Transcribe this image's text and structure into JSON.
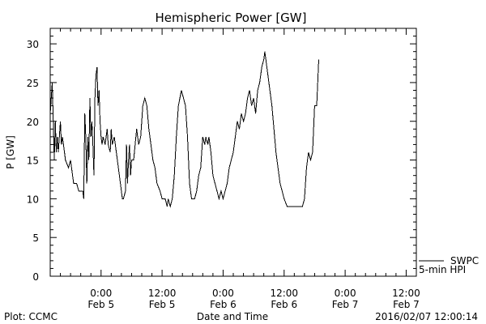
{
  "chart_data": {
    "type": "line",
    "title": "Hemispheric Power [GW]",
    "xlabel": "Date and Time",
    "ylabel": "P [GW]",
    "ylim": [
      0,
      32
    ],
    "xlim": [
      -5,
      31
    ],
    "x_unit_note": "hours from 2016-02-05 00:00 UT",
    "yticks": [
      0,
      5,
      10,
      15,
      20,
      25,
      30
    ],
    "xticks": [
      {
        "x": 0,
        "time": "0:00",
        "date": "Feb 5"
      },
      {
        "x": 6,
        "time": "12:00",
        "date": "Feb 5"
      },
      {
        "x": 12,
        "time": "0:00",
        "date": "Feb 6"
      },
      {
        "x": 18,
        "time": "12:00",
        "date": "Feb 6"
      },
      {
        "x": 24,
        "time": "0:00",
        "date": "Feb 7"
      },
      {
        "x": 30,
        "time": "12:00",
        "date": "Feb 7"
      }
    ],
    "grid": false,
    "legend_position": "bottom-right",
    "series": [
      {
        "name": "SWPC 5-min HPI",
        "color": "#000000",
        "points": [
          [
            -5.0,
            21
          ],
          [
            -4.9,
            23
          ],
          [
            -4.8,
            25
          ],
          [
            -4.7,
            20
          ],
          [
            -4.6,
            15
          ],
          [
            -4.5,
            20
          ],
          [
            -4.4,
            16
          ],
          [
            -4.3,
            18
          ],
          [
            -4.2,
            16
          ],
          [
            -4.1,
            18
          ],
          [
            -4.0,
            20
          ],
          [
            -3.9,
            17
          ],
          [
            -3.8,
            18
          ],
          [
            -3.6,
            16
          ],
          [
            -3.5,
            15
          ],
          [
            -3.2,
            14
          ],
          [
            -3.0,
            15
          ],
          [
            -2.8,
            13
          ],
          [
            -2.7,
            12
          ],
          [
            -2.4,
            12
          ],
          [
            -2.2,
            11
          ],
          [
            -1.8,
            11
          ],
          [
            -1.7,
            10
          ],
          [
            -1.6,
            21
          ],
          [
            -1.5,
            18
          ],
          [
            -1.4,
            12
          ],
          [
            -1.3,
            18
          ],
          [
            -1.2,
            15
          ],
          [
            -1.1,
            23
          ],
          [
            -1.0,
            18
          ],
          [
            -0.9,
            20
          ],
          [
            -0.8,
            17
          ],
          [
            -0.7,
            13
          ],
          [
            -0.6,
            23
          ],
          [
            -0.5,
            26
          ],
          [
            -0.4,
            27
          ],
          [
            -0.3,
            22
          ],
          [
            -0.2,
            24
          ],
          [
            -0.1,
            20
          ],
          [
            0.0,
            18
          ],
          [
            0.1,
            17
          ],
          [
            0.2,
            18
          ],
          [
            0.4,
            17
          ],
          [
            0.6,
            19
          ],
          [
            0.7,
            17
          ],
          [
            0.9,
            16
          ],
          [
            1.0,
            19
          ],
          [
            1.1,
            17
          ],
          [
            1.3,
            18
          ],
          [
            1.6,
            15
          ],
          [
            1.8,
            13
          ],
          [
            2.1,
            10
          ],
          [
            2.2,
            10
          ],
          [
            2.4,
            11
          ],
          [
            2.5,
            17
          ],
          [
            2.6,
            12
          ],
          [
            2.7,
            15
          ],
          [
            2.8,
            17
          ],
          [
            2.9,
            13
          ],
          [
            3.0,
            15
          ],
          [
            3.2,
            15
          ],
          [
            3.5,
            19
          ],
          [
            3.7,
            17
          ],
          [
            3.9,
            18
          ],
          [
            4.1,
            22
          ],
          [
            4.3,
            23
          ],
          [
            4.5,
            22
          ],
          [
            4.7,
            19
          ],
          [
            4.9,
            17
          ],
          [
            5.1,
            15
          ],
          [
            5.3,
            14
          ],
          [
            5.5,
            12
          ],
          [
            5.8,
            11
          ],
          [
            6.0,
            10
          ],
          [
            6.3,
            10
          ],
          [
            6.5,
            9
          ],
          [
            6.6,
            10
          ],
          [
            6.8,
            9
          ],
          [
            7.0,
            10
          ],
          [
            7.2,
            13
          ],
          [
            7.4,
            18
          ],
          [
            7.6,
            22
          ],
          [
            7.9,
            24
          ],
          [
            8.1,
            23
          ],
          [
            8.3,
            22
          ],
          [
            8.5,
            18
          ],
          [
            8.7,
            12
          ],
          [
            8.9,
            10
          ],
          [
            9.2,
            10
          ],
          [
            9.4,
            11
          ],
          [
            9.6,
            13
          ],
          [
            9.8,
            14
          ],
          [
            10.0,
            18
          ],
          [
            10.2,
            17
          ],
          [
            10.3,
            18
          ],
          [
            10.5,
            17
          ],
          [
            10.6,
            18
          ],
          [
            10.8,
            16
          ],
          [
            11.0,
            13
          ],
          [
            11.2,
            12
          ],
          [
            11.4,
            11
          ],
          [
            11.6,
            10
          ],
          [
            11.8,
            11
          ],
          [
            12.0,
            10
          ],
          [
            12.2,
            11
          ],
          [
            12.4,
            12
          ],
          [
            12.6,
            14
          ],
          [
            12.8,
            15
          ],
          [
            13.0,
            16
          ],
          [
            13.2,
            18
          ],
          [
            13.4,
            20
          ],
          [
            13.6,
            19
          ],
          [
            13.8,
            21
          ],
          [
            14.0,
            20
          ],
          [
            14.2,
            21
          ],
          [
            14.4,
            23
          ],
          [
            14.6,
            24
          ],
          [
            14.8,
            22
          ],
          [
            15.0,
            23
          ],
          [
            15.2,
            21
          ],
          [
            15.4,
            24
          ],
          [
            15.6,
            25
          ],
          [
            15.8,
            27
          ],
          [
            16.0,
            28
          ],
          [
            16.1,
            29
          ],
          [
            16.2,
            28
          ],
          [
            16.4,
            26
          ],
          [
            16.6,
            24
          ],
          [
            16.8,
            22
          ],
          [
            17.0,
            19
          ],
          [
            17.2,
            16
          ],
          [
            17.4,
            14
          ],
          [
            17.6,
            12
          ],
          [
            17.8,
            11
          ],
          [
            18.0,
            10
          ],
          [
            18.3,
            9
          ],
          [
            19.0,
            9
          ],
          [
            19.8,
            9
          ],
          [
            20.0,
            10
          ],
          [
            20.2,
            14
          ],
          [
            20.4,
            16
          ],
          [
            20.6,
            15
          ],
          [
            20.8,
            16
          ],
          [
            21.0,
            22
          ],
          [
            21.2,
            22
          ],
          [
            21.4,
            28
          ]
        ]
      }
    ],
    "legend_lines": [
      "SWPC",
      "5-min HPI"
    ]
  },
  "footer": {
    "left": "Plot: CCMC",
    "right": "2016/02/07 12:00:14"
  }
}
